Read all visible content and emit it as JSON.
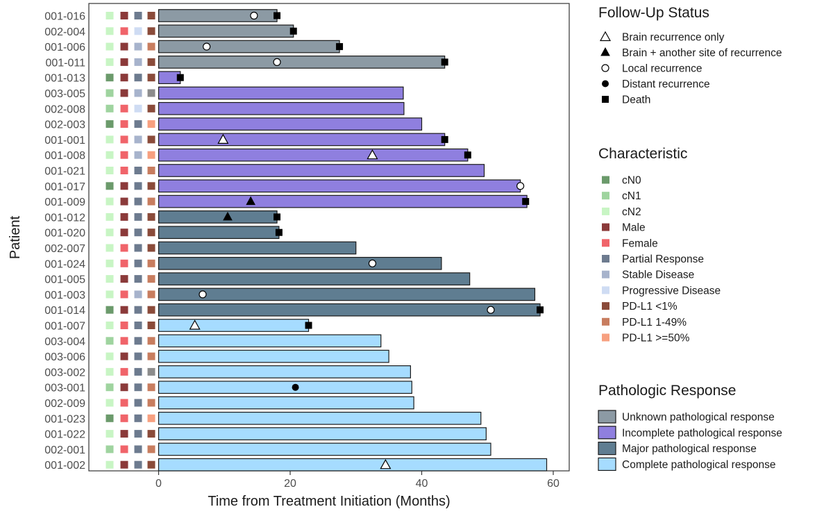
{
  "chart_data": {
    "type": "bar",
    "orientation": "horizontal",
    "title": "",
    "xlabel": "Time from Treatment Initiation (Months)",
    "ylabel": "Patient",
    "xlim": [
      -10.5,
      62
    ],
    "xticks": [
      0,
      20,
      40,
      60
    ],
    "grid": false,
    "patients": [
      {
        "id": "001-016",
        "months": 18.0,
        "group": "unknown",
        "cn": "cN2",
        "sex": "Male",
        "response": "Partial Response",
        "pdl1": "<1%",
        "events": [
          {
            "type": "local",
            "t": 14.5
          },
          {
            "type": "death",
            "t": 18.0
          }
        ]
      },
      {
        "id": "002-004",
        "months": 20.5,
        "group": "unknown",
        "cn": "cN2",
        "sex": "Female",
        "response": "Progressive Disease",
        "pdl1": "<1%",
        "events": [
          {
            "type": "death",
            "t": 20.5
          }
        ]
      },
      {
        "id": "001-006",
        "months": 27.5,
        "group": "unknown",
        "cn": "cN2",
        "sex": "Male",
        "response": "Stable Disease",
        "pdl1": "1-49%",
        "events": [
          {
            "type": "local",
            "t": 7.3
          },
          {
            "type": "death",
            "t": 27.5
          }
        ]
      },
      {
        "id": "001-011",
        "months": 43.5,
        "group": "unknown",
        "cn": "cN2",
        "sex": "Male",
        "response": "Stable Disease",
        "pdl1": "<1%",
        "events": [
          {
            "type": "local",
            "t": 18.0
          },
          {
            "type": "death",
            "t": 43.5
          }
        ]
      },
      {
        "id": "001-013",
        "months": 3.3,
        "group": "incomplete",
        "cn": "cN0",
        "sex": "Male",
        "response": "Partial Response",
        "pdl1": "<1%",
        "events": [
          {
            "type": "death",
            "t": 3.3
          }
        ]
      },
      {
        "id": "003-005",
        "months": 37.2,
        "group": "incomplete",
        "cn": "cN1",
        "sex": "Male",
        "response": "Stable Disease",
        "pdl1": "NA",
        "events": []
      },
      {
        "id": "002-008",
        "months": 37.3,
        "group": "incomplete",
        "cn": "cN1",
        "sex": "Female",
        "response": "Progressive Disease",
        "pdl1": "<1%",
        "events": []
      },
      {
        "id": "002-003",
        "months": 40.0,
        "group": "incomplete",
        "cn": "cN0",
        "sex": "Female",
        "response": "Partial Response",
        "pdl1": ">=50%",
        "events": []
      },
      {
        "id": "001-001",
        "months": 43.5,
        "group": "incomplete",
        "cn": "cN2",
        "sex": "Female",
        "response": "Stable Disease",
        "pdl1": "<1%",
        "events": [
          {
            "type": "brain",
            "t": 9.8
          },
          {
            "type": "death",
            "t": 43.5
          }
        ]
      },
      {
        "id": "001-008",
        "months": 47.0,
        "group": "incomplete",
        "cn": "cN2",
        "sex": "Female",
        "response": "Stable Disease",
        "pdl1": ">=50%",
        "events": [
          {
            "type": "brain",
            "t": 32.5
          },
          {
            "type": "death",
            "t": 47.0
          }
        ]
      },
      {
        "id": "001-021",
        "months": 49.5,
        "group": "incomplete",
        "cn": "cN2",
        "sex": "Female",
        "response": "Partial Response",
        "pdl1": "1-49%",
        "events": []
      },
      {
        "id": "001-017",
        "months": 55.0,
        "group": "incomplete",
        "cn": "cN0",
        "sex": "Male",
        "response": "Partial Response",
        "pdl1": "<1%",
        "events": [
          {
            "type": "local",
            "t": 55.0
          }
        ]
      },
      {
        "id": "001-009",
        "months": 56.0,
        "group": "incomplete",
        "cn": "cN2",
        "sex": "Male",
        "response": "Partial Response",
        "pdl1": "1-49%",
        "events": [
          {
            "type": "brainplus",
            "t": 14.0
          },
          {
            "type": "death",
            "t": 55.8
          }
        ]
      },
      {
        "id": "001-012",
        "months": 18.0,
        "group": "major",
        "cn": "cN2",
        "sex": "Male",
        "response": "Partial Response",
        "pdl1": "<1%",
        "events": [
          {
            "type": "brainplus",
            "t": 10.5
          },
          {
            "type": "death",
            "t": 18.0
          }
        ]
      },
      {
        "id": "001-020",
        "months": 18.3,
        "group": "major",
        "cn": "cN2",
        "sex": "Male",
        "response": "Partial Response",
        "pdl1": "<1%",
        "events": [
          {
            "type": "death",
            "t": 18.3
          }
        ]
      },
      {
        "id": "002-007",
        "months": 30.0,
        "group": "major",
        "cn": "cN2",
        "sex": "Female",
        "response": "Partial Response",
        "pdl1": "<1%",
        "events": []
      },
      {
        "id": "001-024",
        "months": 43.0,
        "group": "major",
        "cn": "cN2",
        "sex": "Female",
        "response": "Partial Response",
        "pdl1": "1-49%",
        "events": [
          {
            "type": "local",
            "t": 32.5
          }
        ]
      },
      {
        "id": "001-005",
        "months": 47.3,
        "group": "major",
        "cn": "cN2",
        "sex": "Male",
        "response": "Partial Response",
        "pdl1": "1-49%",
        "events": []
      },
      {
        "id": "001-003",
        "months": 57.2,
        "group": "major",
        "cn": "cN2",
        "sex": "Female",
        "response": "Stable Disease",
        "pdl1": "1-49%",
        "events": [
          {
            "type": "local",
            "t": 6.7
          }
        ]
      },
      {
        "id": "001-014",
        "months": 58.0,
        "group": "major",
        "cn": "cN0",
        "sex": "Male",
        "response": "Partial Response",
        "pdl1": "<1%",
        "events": [
          {
            "type": "local",
            "t": 50.5
          },
          {
            "type": "death",
            "t": 58.0
          }
        ]
      },
      {
        "id": "001-007",
        "months": 22.8,
        "group": "complete",
        "cn": "cN2",
        "sex": "Female",
        "response": "Partial Response",
        "pdl1": "<1%",
        "events": [
          {
            "type": "brain",
            "t": 5.5
          },
          {
            "type": "death",
            "t": 22.8
          }
        ]
      },
      {
        "id": "003-004",
        "months": 33.8,
        "group": "complete",
        "cn": "cN1",
        "sex": "Female",
        "response": "Partial Response",
        "pdl1": "1-49%",
        "events": []
      },
      {
        "id": "003-006",
        "months": 35.0,
        "group": "complete",
        "cn": "cN2",
        "sex": "Male",
        "response": "Partial Response",
        "pdl1": "1-49%",
        "events": []
      },
      {
        "id": "003-002",
        "months": 38.3,
        "group": "complete",
        "cn": "cN2",
        "sex": "Female",
        "response": "Partial Response",
        "pdl1": "NA",
        "events": []
      },
      {
        "id": "003-001",
        "months": 38.5,
        "group": "complete",
        "cn": "cN1",
        "sex": "Male",
        "response": "Partial Response",
        "pdl1": "1-49%",
        "events": [
          {
            "type": "distant",
            "t": 20.8
          }
        ]
      },
      {
        "id": "002-009",
        "months": 38.8,
        "group": "complete",
        "cn": "cN2",
        "sex": "Female",
        "response": "Partial Response",
        "pdl1": "1-49%",
        "events": []
      },
      {
        "id": "001-023",
        "months": 49.0,
        "group": "complete",
        "cn": "cN0",
        "sex": "Female",
        "response": "Partial Response",
        "pdl1": ">=50%",
        "events": []
      },
      {
        "id": "001-022",
        "months": 49.8,
        "group": "complete",
        "cn": "cN2",
        "sex": "Male",
        "response": "Partial Response",
        "pdl1": "<1%",
        "events": []
      },
      {
        "id": "002-001",
        "months": 50.5,
        "group": "complete",
        "cn": "cN1",
        "sex": "Female",
        "response": "Partial Response",
        "pdl1": "1-49%",
        "events": []
      },
      {
        "id": "001-002",
        "months": 59.0,
        "group": "complete",
        "cn": "cN2",
        "sex": "Male",
        "response": "Partial Response",
        "pdl1": "<1%",
        "events": [
          {
            "type": "brain",
            "t": 34.5
          }
        ]
      }
    ],
    "follow_up_legend": {
      "title": "Follow-Up Status",
      "items": [
        {
          "key": "brain",
          "label": "Brain recurrence only"
        },
        {
          "key": "brainplus",
          "label": "Brain + another site of recurrence"
        },
        {
          "key": "local",
          "label": "Local recurrence"
        },
        {
          "key": "distant",
          "label": "Distant recurrence"
        },
        {
          "key": "death",
          "label": "Death"
        }
      ]
    },
    "characteristic_legend": {
      "title": "Characteristic",
      "items": [
        {
          "key": "cN0",
          "label": "cN0",
          "color": "#6b9a6b"
        },
        {
          "key": "cN1",
          "label": "cN1",
          "color": "#9fd49f"
        },
        {
          "key": "cN2",
          "label": "cN2",
          "color": "#c8f5c4"
        },
        {
          "key": "Male",
          "label": "Male",
          "color": "#8b3a3a"
        },
        {
          "key": "Female",
          "label": "Female",
          "color": "#f0646a"
        },
        {
          "key": "Partial Response",
          "label": "Partial Response",
          "color": "#6d7b8f"
        },
        {
          "key": "Stable Disease",
          "label": "Stable Disease",
          "color": "#a7b3cc"
        },
        {
          "key": "Progressive Disease",
          "label": "Progressive Disease",
          "color": "#cfdcf3"
        },
        {
          "key": "<1%",
          "label": "PD-L1 <1%",
          "color": "#8a4b3a"
        },
        {
          "key": "1-49%",
          "label": "PD-L1 1-49%",
          "color": "#c87d5f"
        },
        {
          "key": ">=50%",
          "label": "PD-L1 >=50%",
          "color": "#f7a080"
        }
      ],
      "na_color": "#8c8c8c"
    },
    "pathologic_legend": {
      "title": "Pathologic Response",
      "items": [
        {
          "key": "unknown",
          "label": "Unknown pathological response",
          "color": "#8c9aa4"
        },
        {
          "key": "incomplete",
          "label": "Incomplete pathological response",
          "color": "#8f7fdf"
        },
        {
          "key": "major",
          "label": "Major pathological response",
          "color": "#5f7d91"
        },
        {
          "key": "complete",
          "label": "Complete pathological response",
          "color": "#a6dcff"
        }
      ]
    }
  }
}
